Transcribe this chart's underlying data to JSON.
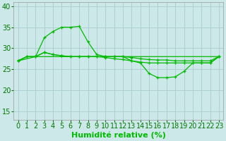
{
  "xlabel": "Humidité relative (%)",
  "background_color": "#cce8e8",
  "grid_color": "#aacccc",
  "line_color": "#00bb00",
  "xlim": [
    -0.5,
    23.5
  ],
  "ylim": [
    13,
    41
  ],
  "yticks": [
    15,
    20,
    25,
    30,
    35,
    40
  ],
  "xticks": [
    0,
    1,
    2,
    3,
    4,
    5,
    6,
    7,
    8,
    9,
    10,
    11,
    12,
    13,
    14,
    15,
    16,
    17,
    18,
    19,
    20,
    21,
    22,
    23
  ],
  "s1_x": [
    0,
    1,
    2,
    3,
    4,
    5,
    6,
    7,
    8,
    9,
    10,
    11,
    12,
    13,
    14,
    15,
    16,
    17,
    18,
    19,
    20,
    21,
    22,
    23
  ],
  "s1_y": [
    27.0,
    28.0,
    28.0,
    28.0,
    28.0,
    28.0,
    28.0,
    28.0,
    28.0,
    28.0,
    28.0,
    28.0,
    28.0,
    28.0,
    28.0,
    28.0,
    28.0,
    28.0,
    28.0,
    28.0,
    28.0,
    28.0,
    28.0,
    28.0
  ],
  "s2_x": [
    0,
    1,
    2,
    3,
    4,
    5,
    6,
    7,
    8,
    9,
    10,
    11,
    12,
    13,
    14,
    15,
    16,
    17,
    18,
    19,
    20,
    21,
    22,
    23
  ],
  "s2_y": [
    27.0,
    28.0,
    28.0,
    29.0,
    28.5,
    28.2,
    28.0,
    28.0,
    28.0,
    28.0,
    28.0,
    28.0,
    28.0,
    27.8,
    27.5,
    27.3,
    27.2,
    27.2,
    27.0,
    27.0,
    27.0,
    27.0,
    27.0,
    28.0
  ],
  "s3_x": [
    0,
    1,
    2,
    3,
    4,
    5,
    6,
    7,
    8,
    9,
    10,
    11,
    12,
    13,
    14,
    15,
    16,
    17,
    18,
    19,
    20,
    21,
    22,
    23
  ],
  "s3_y": [
    27.0,
    28.0,
    28.0,
    29.0,
    28.5,
    28.2,
    28.0,
    28.0,
    28.0,
    28.0,
    27.8,
    27.5,
    27.3,
    27.0,
    26.7,
    26.5,
    26.5,
    26.5,
    26.5,
    26.5,
    26.5,
    26.5,
    26.5,
    28.0
  ],
  "s4_x": [
    0,
    2,
    3,
    4,
    5,
    6,
    7,
    8,
    9,
    10,
    11,
    12,
    13,
    14,
    15,
    16,
    17,
    18,
    19,
    20,
    21,
    22,
    23
  ],
  "s4_y": [
    27.0,
    28.0,
    32.5,
    34.0,
    35.0,
    35.0,
    35.2,
    31.5,
    28.5,
    28.0,
    28.0,
    28.0,
    27.0,
    26.5,
    24.0,
    23.0,
    23.0,
    23.2,
    24.5,
    26.5,
    26.5,
    26.5,
    28.0
  ],
  "xlabel_fontsize": 8,
  "tick_fontsize": 7
}
